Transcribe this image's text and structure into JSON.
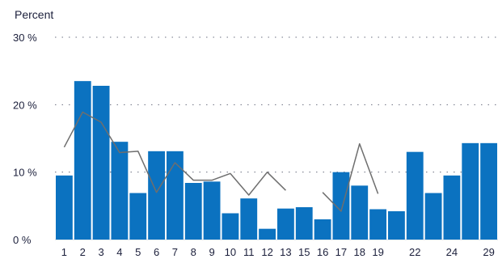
{
  "chart_data": {
    "type": "bar",
    "ylabel": "Percent",
    "ylim": [
      0,
      30
    ],
    "y_ticks": [
      "0 %",
      "10 %",
      "20 %",
      "30 %"
    ],
    "y_tick_values": [
      0,
      10,
      20,
      30
    ],
    "grid": true,
    "colors": {
      "bar": "#0b72c0",
      "line": "#6e6e6e",
      "grid": "#6b6f80",
      "text": "#1b1f3b"
    },
    "categories": [
      "1",
      "2",
      "3",
      "4",
      "5",
      "6",
      "7",
      "8",
      "9",
      "10",
      "11",
      "12",
      "13",
      "15",
      "16",
      "17",
      "18",
      "19",
      "20",
      "22",
      "23",
      "24",
      "28",
      "29"
    ],
    "x_tick_labels": [
      "1",
      "2",
      "3",
      "4",
      "5",
      "6",
      "7",
      "8",
      "9",
      "10",
      "11",
      "12",
      "13",
      "15",
      "16",
      "17",
      "18",
      "19",
      "",
      "22",
      "",
      "24",
      "",
      "29"
    ],
    "series": [
      {
        "type": "bar",
        "values": [
          9.5,
          23.5,
          22.8,
          14.5,
          6.9,
          13.1,
          13.1,
          8.4,
          8.6,
          3.9,
          6.1,
          1.6,
          4.6,
          4.8,
          3.0,
          10.0,
          8.0,
          4.5,
          4.2,
          13.0,
          6.9,
          9.5,
          14.3,
          14.3
        ]
      },
      {
        "type": "line",
        "values": [
          13.7,
          18.9,
          17.4,
          12.9,
          13.1,
          7.0,
          11.4,
          8.8,
          8.8,
          9.8,
          6.6,
          10.0,
          7.3,
          null,
          7.0,
          4.2,
          14.2,
          6.8,
          null,
          null,
          null,
          null,
          null,
          null
        ]
      }
    ]
  }
}
